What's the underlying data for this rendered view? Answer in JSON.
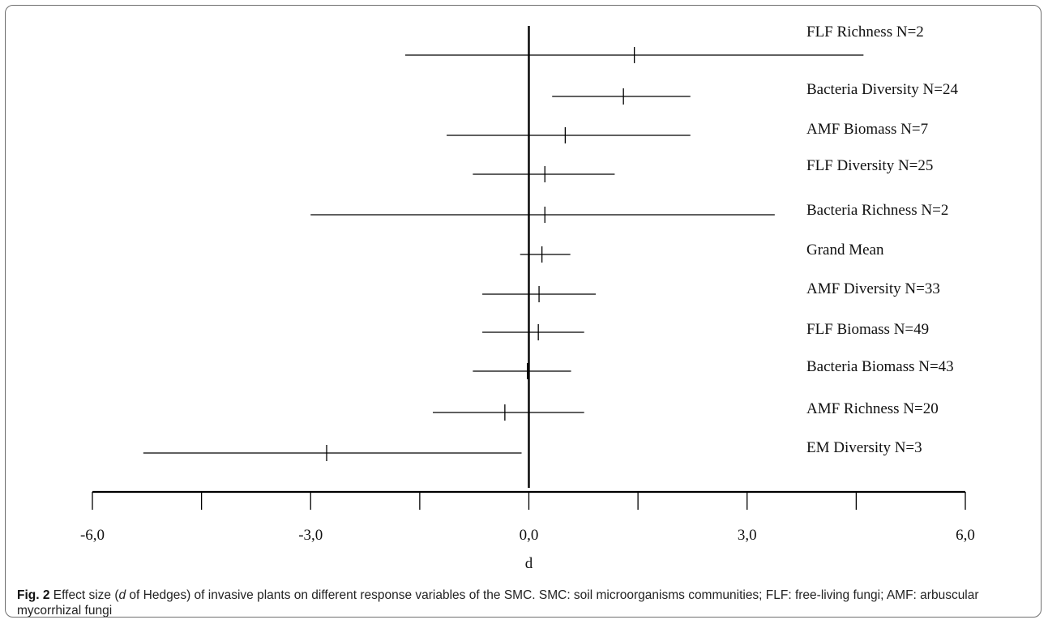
{
  "chart_data": {
    "type": "forest",
    "title": "",
    "xlabel": "d",
    "ylabel": "",
    "xlim": [
      -6,
      6
    ],
    "xticks": [
      -6,
      -4.5,
      -3,
      -1.5,
      0,
      1.5,
      3,
      4.5,
      6
    ],
    "xtick_labels": [
      "-6,0",
      "-3,0",
      "0,0",
      "3,0",
      "6,0"
    ],
    "xtick_label_values": [
      -6,
      -3,
      0,
      3,
      6
    ],
    "reference_line": 0,
    "grid": false,
    "rows": [
      {
        "label": "FLF Richness N=2",
        "mean": 1.45,
        "lower": -1.7,
        "upper": 4.6
      },
      {
        "label": "Bacteria Diversity N=24",
        "mean": 1.3,
        "lower": 0.32,
        "upper": 2.22
      },
      {
        "label": "AMF Biomass N=7",
        "mean": 0.5,
        "lower": -1.13,
        "upper": 2.22
      },
      {
        "label": "FLF Diversity N=25",
        "mean": 0.22,
        "lower": -0.77,
        "upper": 1.18
      },
      {
        "label": "Bacteria Richness N=2",
        "mean": 0.22,
        "lower": -3.0,
        "upper": 3.38
      },
      {
        "label": "Grand Mean",
        "mean": 0.18,
        "lower": -0.12,
        "upper": 0.57
      },
      {
        "label": "AMF Diversity N=33",
        "mean": 0.14,
        "lower": -0.64,
        "upper": 0.92
      },
      {
        "label": "FLF Biomass N=49",
        "mean": 0.13,
        "lower": -0.64,
        "upper": 0.76
      },
      {
        "label": "Bacteria Biomass N=43",
        "mean": -0.02,
        "lower": -0.77,
        "upper": 0.58
      },
      {
        "label": "AMF Richness N=20",
        "mean": -0.33,
        "lower": -1.32,
        "upper": 0.76
      },
      {
        "label": "EM Diversity N=3",
        "mean": -2.78,
        "lower": -5.3,
        "upper": -0.1
      }
    ]
  },
  "caption": {
    "fig_label": "Fig. 2",
    "text_before_italic": " Effect size (",
    "italic": "d",
    "text_after_italic": " of Hedges) of invasive plants on different response variables of the SMC. SMC: soil microorganisms communities; FLF: free-living fungi; AMF: arbuscular mycorrhizal fungi"
  }
}
